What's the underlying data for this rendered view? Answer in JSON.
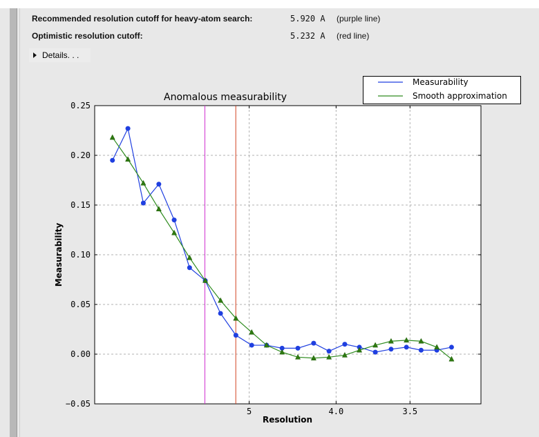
{
  "summary": {
    "recommended_label": "Recommended resolution cutoff for heavy-atom search:",
    "recommended_value": "5.920 A",
    "recommended_note": "(purple line)",
    "optimistic_label": "Optimistic resolution cutoff:",
    "optimistic_value": "5.232 A",
    "optimistic_note": "(red line)",
    "details_label": "Details. . ."
  },
  "chart_data": {
    "type": "line",
    "title": "Anomalous measurability",
    "xlabel": "Resolution",
    "ylabel": "Measurability",
    "x_scale": "1/d^2 (reciprocal squared resolution)",
    "xlim_resolution": [
      "inf",
      3.16
    ],
    "ylim": [
      -0.05,
      0.25
    ],
    "yticks": [
      "0.25",
      "0.20",
      "0.15",
      "0.10",
      "0.05",
      "0.00",
      "−0.05"
    ],
    "xticks": [
      {
        "value": 5,
        "label": "5"
      },
      {
        "value": 4.0,
        "label": "4.0"
      },
      {
        "value": 3.5,
        "label": "3.5"
      }
    ],
    "grid": true,
    "legend_position": "top-right (outside plot)",
    "x": [
      14.74,
      10.78,
      8.91,
      7.76,
      6.97,
      6.38,
      5.91,
      5.54,
      5.23,
      4.96,
      4.74,
      4.54,
      4.36,
      4.2,
      4.06,
      3.93,
      3.82,
      3.71,
      3.61,
      3.52,
      3.44,
      3.36,
      3.29
    ],
    "series": [
      {
        "name": "Measurability",
        "color": "#1f3fe0",
        "marker": "circle",
        "values": [
          0.195,
          0.227,
          0.152,
          0.171,
          0.135,
          0.087,
          0.074,
          0.041,
          0.019,
          0.009,
          0.009,
          0.006,
          0.006,
          0.011,
          0.003,
          0.01,
          0.007,
          0.002,
          0.005,
          0.007,
          0.004,
          0.004,
          0.007
        ]
      },
      {
        "name": "Smooth approximation",
        "color": "#2e8b1e",
        "marker": "triangle",
        "values": [
          0.218,
          0.196,
          0.172,
          0.146,
          0.122,
          0.097,
          0.074,
          0.054,
          0.036,
          0.022,
          0.009,
          0.002,
          -0.003,
          -0.004,
          -0.003,
          -0.001,
          0.004,
          0.009,
          0.013,
          0.014,
          0.013,
          0.007,
          -0.005
        ]
      }
    ],
    "vlines": [
      {
        "resolution": 5.92,
        "color": "#d030d0"
      },
      {
        "resolution": 5.232,
        "color": "#d04020"
      }
    ]
  }
}
